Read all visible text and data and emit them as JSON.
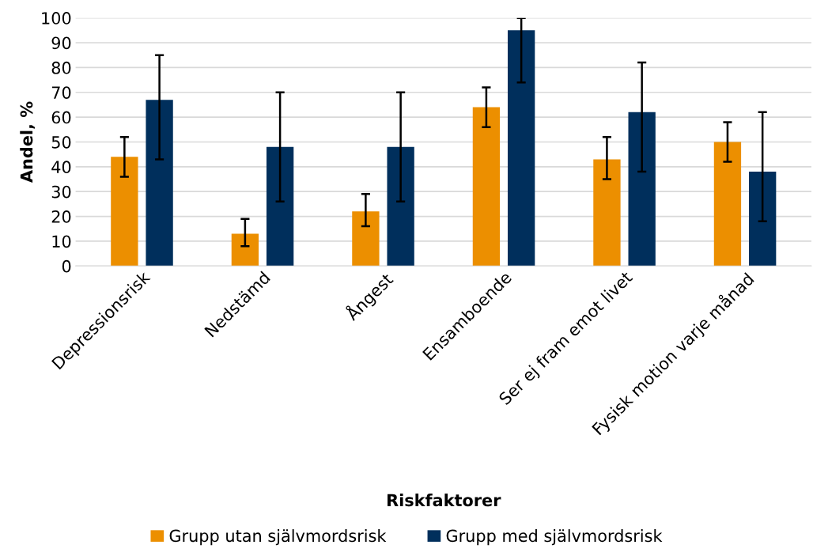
{
  "chart_data": {
    "type": "bar",
    "xlabel": "Riskfaktorer",
    "ylabel": "Andel, %",
    "categories": [
      "Depressionsrisk",
      "Nedstämd",
      "Ångest",
      "Ensamboende",
      "Ser ej fram emot livet",
      "Fysisk motion varje månad"
    ],
    "series": [
      {
        "name": "Grupp utan självmordsrisk",
        "color": "#ec8f00",
        "values": [
          44,
          13,
          22,
          64,
          43,
          50
        ],
        "errors": [
          [
            36,
            52
          ],
          [
            8,
            19
          ],
          [
            16,
            29
          ],
          [
            56,
            72
          ],
          [
            35,
            52
          ],
          [
            42,
            58
          ]
        ]
      },
      {
        "name": "Grupp med självmordsrisk",
        "color": "#002f5c",
        "values": [
          67,
          48,
          48,
          95,
          62,
          38
        ],
        "errors": [
          [
            43,
            85
          ],
          [
            26,
            70
          ],
          [
            26,
            70
          ],
          [
            74,
            100
          ],
          [
            38,
            82
          ],
          [
            18,
            62
          ]
        ]
      }
    ],
    "ylim": [
      0,
      100
    ],
    "yticks": [
      0,
      10,
      20,
      30,
      40,
      50,
      60,
      70,
      80,
      90,
      100
    ],
    "grid": "y",
    "legend": "bottom"
  }
}
